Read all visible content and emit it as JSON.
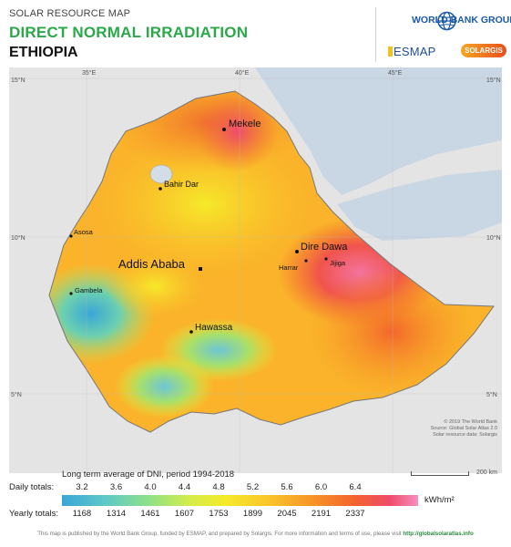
{
  "header": {
    "subtitle": "SOLAR RESOURCE MAP",
    "title": "DIRECT NORMAL IRRADIATION",
    "country": "ETHIOPIA"
  },
  "logos": {
    "world_bank": "WORLD BANK GROUP",
    "esmap": "ESMAP",
    "solargis": "SOLARGIS"
  },
  "map": {
    "lon_labels": [
      "35°E",
      "40°E",
      "45°E"
    ],
    "lat_labels": [
      "15°N",
      "10°N",
      "5°N"
    ],
    "cities": [
      {
        "name": "Mekele",
        "size": "medium"
      },
      {
        "name": "Bahir Dar",
        "size": "small"
      },
      {
        "name": "Asosa",
        "size": "small"
      },
      {
        "name": "Dire Dawa",
        "size": "medium"
      },
      {
        "name": "Harrar",
        "size": "small"
      },
      {
        "name": "Jijiga",
        "size": "small"
      },
      {
        "name": "Addis Ababa",
        "size": "large"
      },
      {
        "name": "Gambela",
        "size": "small"
      },
      {
        "name": "Hawassa",
        "size": "medium"
      }
    ],
    "copyright": [
      "© 2019 The World Bank",
      "Source: Global Solar Atlas 2.0",
      "Solar resource data: Solargis"
    ],
    "scale": "200 km"
  },
  "legend": {
    "title": "Long term average of DNI, period 1994-2018",
    "daily_label": "Daily totals:",
    "yearly_label": "Yearly totals:",
    "daily_values": [
      "3.2",
      "3.6",
      "4.0",
      "4.4",
      "4.8",
      "5.2",
      "5.6",
      "6.0",
      "6.4"
    ],
    "yearly_values": [
      "1168",
      "1314",
      "1461",
      "1607",
      "1753",
      "1899",
      "2045",
      "2191",
      "2337"
    ],
    "unit": "kWh/m²"
  },
  "footer": {
    "text": "This map is published by the World Bank Group, funded by ESMAP, and prepared by Solargis. For more information and terms of use, please visit",
    "url": "http://globalsolaratlas.info"
  },
  "colors": {
    "title_green": "#2aa84a",
    "wb_blue": "#1a5aa6",
    "sea": "#c9d6e3",
    "land_outside": "#e6e6e6"
  }
}
